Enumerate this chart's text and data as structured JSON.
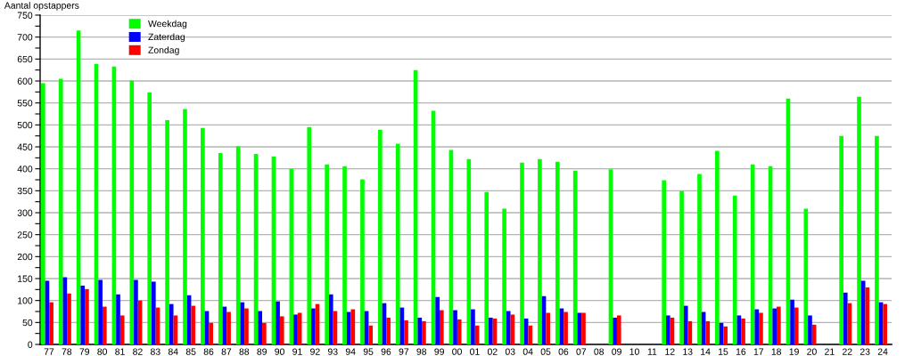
{
  "chart_data": {
    "type": "bar",
    "ylabel": "Aantal opstappers",
    "categories": [
      "77",
      "78",
      "79",
      "80",
      "81",
      "82",
      "83",
      "84",
      "85",
      "86",
      "87",
      "88",
      "89",
      "90",
      "91",
      "92",
      "93",
      "94",
      "95",
      "96",
      "97",
      "98",
      "99",
      "00",
      "01",
      "02",
      "03",
      "04",
      "05",
      "06",
      "07",
      "08",
      "09",
      "10",
      "11",
      "12",
      "13",
      "14",
      "15",
      "16",
      "17",
      "18",
      "19",
      "20",
      "21",
      "22",
      "23",
      "24"
    ],
    "series": [
      {
        "name": "Weekdag",
        "color": "#00ff00",
        "values": [
          595,
          605,
          715,
          639,
          633,
          601,
          574,
          511,
          536,
          493,
          436,
          451,
          434,
          428,
          400,
          495,
          410,
          406,
          376,
          489,
          457,
          625,
          532,
          443,
          422,
          347,
          309,
          414,
          422,
          416,
          396,
          null,
          399,
          null,
          null,
          374,
          349,
          388,
          441,
          339,
          410,
          406,
          560,
          309,
          null,
          475,
          564,
          475
        ]
      },
      {
        "name": "Zaterdag",
        "color": "#0000ff",
        "values": [
          145,
          153,
          134,
          147,
          114,
          147,
          143,
          92,
          112,
          76,
          86,
          96,
          76,
          98,
          68,
          82,
          114,
          74,
          76,
          94,
          84,
          61,
          108,
          78,
          80,
          61,
          76,
          59,
          110,
          82,
          72,
          null,
          61,
          null,
          null,
          66,
          88,
          74,
          49,
          66,
          80,
          82,
          102,
          66,
          null,
          118,
          145,
          96
        ]
      },
      {
        "name": "Zondag",
        "color": "#ff0000",
        "values": [
          96,
          116,
          126,
          86,
          66,
          100,
          84,
          66,
          88,
          49,
          74,
          82,
          49,
          64,
          72,
          92,
          76,
          80,
          43,
          61,
          55,
          53,
          78,
          57,
          43,
          59,
          68,
          43,
          72,
          74,
          72,
          null,
          66,
          null,
          null,
          61,
          53,
          53,
          41,
          59,
          72,
          86,
          84,
          45,
          null,
          94,
          130,
          92
        ]
      }
    ],
    "ylim": [
      0,
      750
    ],
    "yticks": [
      0,
      {
        "value": 25,
        "label": null
      },
      50,
      {
        "value": 75,
        "label": null
      },
      100,
      {
        "value": 125,
        "label": null
      },
      150,
      {
        "value": 175,
        "label": null
      },
      200,
      {
        "value": 225,
        "label": null
      },
      250,
      {
        "value": 275,
        "label": null
      },
      300,
      {
        "value": 325,
        "label": null
      },
      350,
      {
        "value": 375,
        "label": null
      },
      400,
      {
        "value": 425,
        "label": null
      },
      450,
      {
        "value": 475,
        "label": null
      },
      500,
      {
        "value": 525,
        "label": null
      },
      550,
      {
        "value": 575,
        "label": null
      },
      600,
      {
        "value": 625,
        "label": null
      },
      650,
      {
        "value": 675,
        "label": null
      },
      700,
      {
        "value": 725,
        "label": null
      },
      750
    ],
    "grid": "y",
    "legend": "top left"
  }
}
